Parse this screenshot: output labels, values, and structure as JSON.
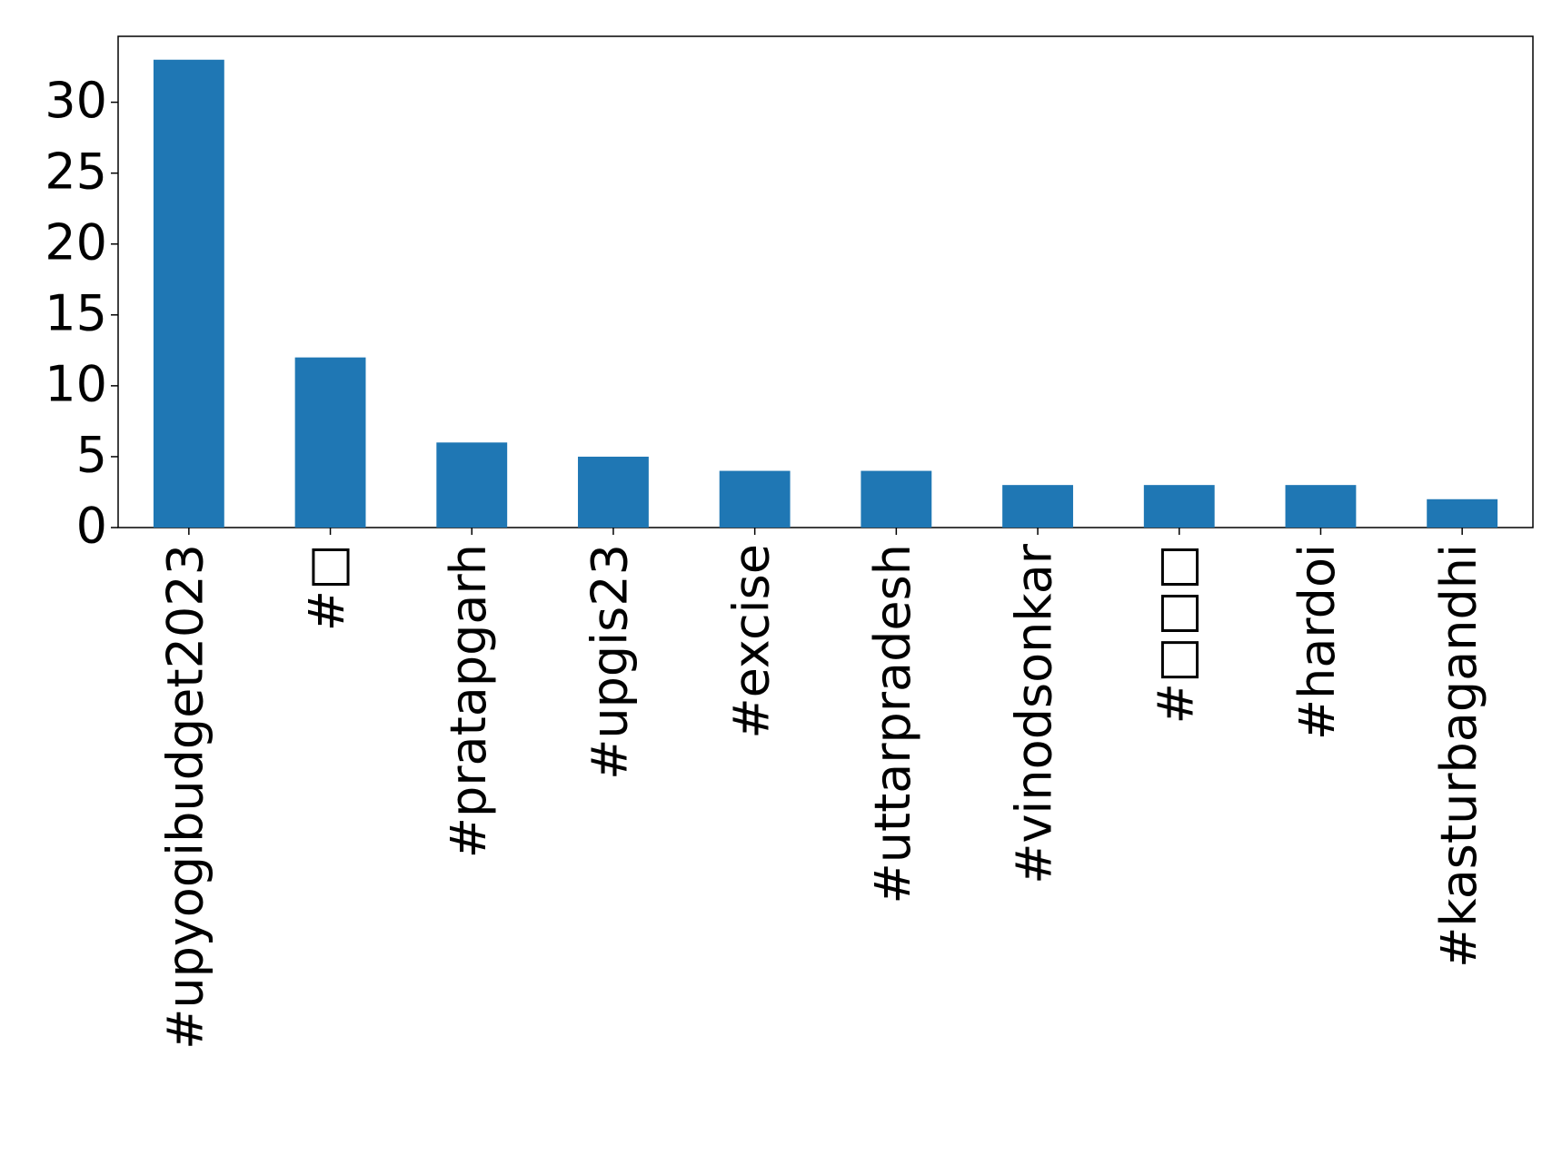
{
  "chart_data": {
    "type": "bar",
    "categories": [
      "#upyogibudget2023",
      "#□",
      "#pratapgarh",
      "#upgis23",
      "#excise",
      "#uttarpradesh",
      "#vinodsonkar",
      "#□□□",
      "#hardoi",
      "#kasturbagandhi"
    ],
    "values": [
      33,
      12,
      6,
      5,
      4,
      4,
      3,
      3,
      3,
      2
    ],
    "color": "#1f77b4",
    "ylim": [
      0,
      34.65
    ],
    "yticks": [
      0,
      5,
      10,
      15,
      20,
      25,
      30
    ],
    "grid": false
  }
}
